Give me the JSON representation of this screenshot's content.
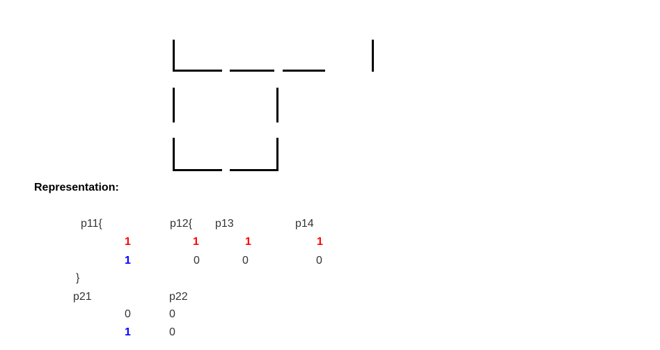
{
  "diagram": {
    "heading": "Representation:",
    "labels": {
      "p11": "p11{",
      "p12": "p12{",
      "p13": "p13",
      "p14": "p14",
      "p21": "p21",
      "p22": "p22",
      "close_brace": "}"
    },
    "row1_bits_top": [
      "1",
      "1",
      "1",
      "1"
    ],
    "row1_bits_bottom": [
      "1",
      "0",
      "0",
      "0"
    ],
    "row2_bits_top": [
      "0",
      "0"
    ],
    "row2_bits_bottom": [
      "1",
      "0"
    ],
    "colors": {
      "highlight_top": "#ff0000",
      "highlight_bottom": "#0000ff",
      "text": "#333333",
      "lines": "#000000"
    }
  }
}
